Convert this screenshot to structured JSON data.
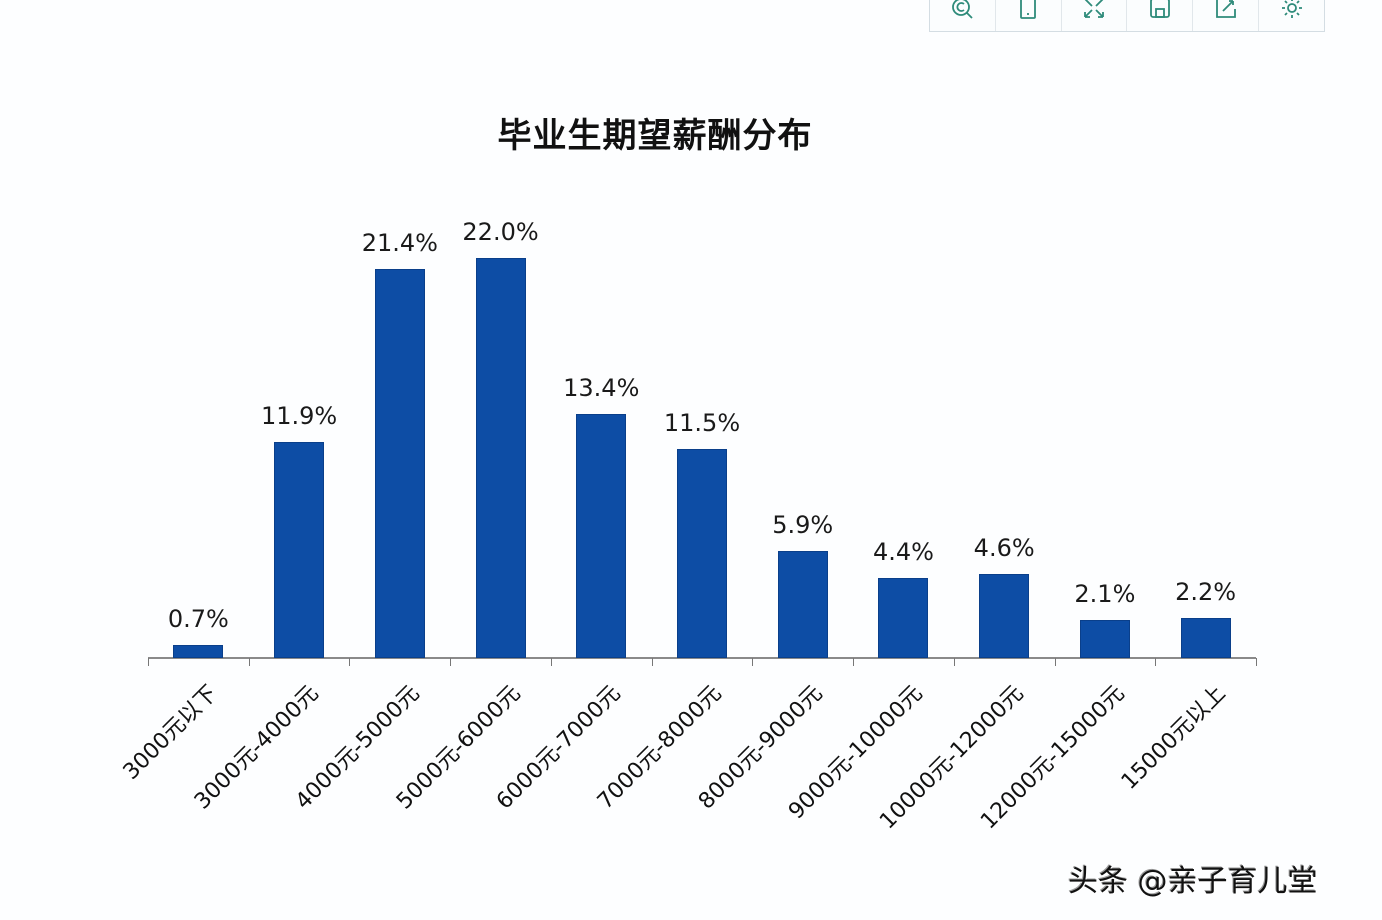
{
  "toolbar": {
    "buttons": [
      {
        "icon": "zoom-search-icon",
        "label": "zoom"
      },
      {
        "icon": "tablet-icon",
        "label": "mobile view"
      },
      {
        "icon": "fullscreen-icon",
        "label": "fullscreen"
      },
      {
        "icon": "save-icon",
        "label": "save"
      },
      {
        "icon": "share-icon",
        "label": "share"
      },
      {
        "icon": "gear-icon",
        "label": "settings"
      }
    ]
  },
  "watermark": "头条 @亲子育儿堂",
  "chart_data": {
    "type": "bar",
    "title": "毕业生期望薪酬分布",
    "xlabel": "",
    "ylabel": "",
    "ylim": [
      0,
      22
    ],
    "grid": false,
    "legend": null,
    "bar_color": "#0d4da5",
    "categories": [
      "3000元以下",
      "3000元-4000元",
      "4000元-5000元",
      "5000元-6000元",
      "6000元-7000元",
      "7000元-8000元",
      "8000元-9000元",
      "9000元-10000元",
      "10000元-12000元",
      "12000元-15000元",
      "15000元以上"
    ],
    "values": [
      0.7,
      11.9,
      21.4,
      22.0,
      13.4,
      11.5,
      5.9,
      4.4,
      4.6,
      2.1,
      2.2
    ],
    "value_labels": [
      "0.7%",
      "11.9%",
      "21.4%",
      "22.0%",
      "13.4%",
      "11.5%",
      "5.9%",
      "4.4%",
      "4.6%",
      "2.1%",
      "2.2%"
    ]
  }
}
